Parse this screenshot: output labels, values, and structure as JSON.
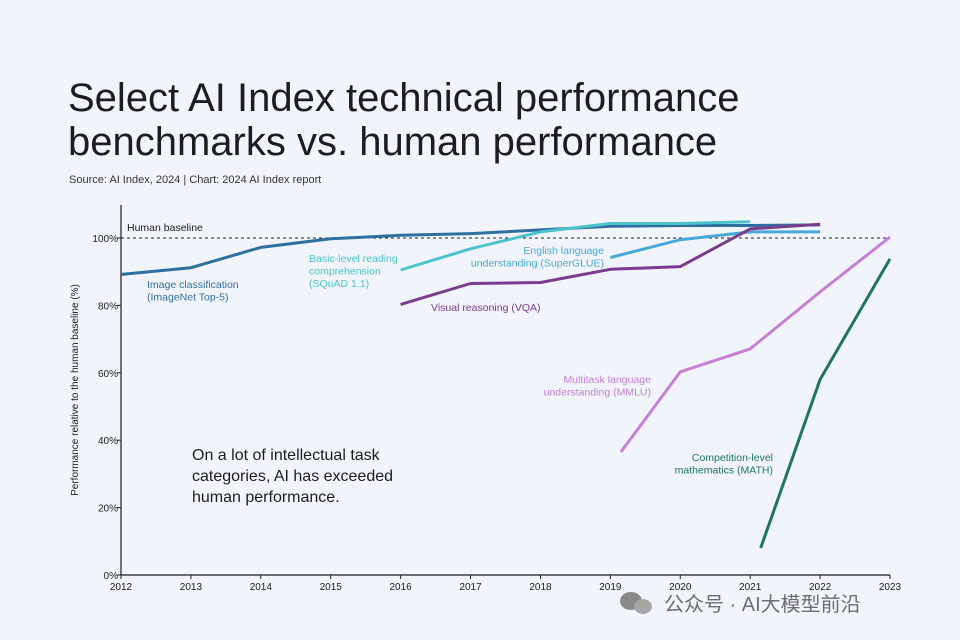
{
  "title": "Select AI Index technical performance benchmarks vs. human performance",
  "source": "Source: AI Index, 2024 | Chart: 2024 AI Index report",
  "annotation": [
    "On a lot of intellectual task",
    "categories, AI has exceeded",
    "human performance."
  ],
  "watermark": "公众号 · AI大模型前沿",
  "chart_data": {
    "type": "line",
    "ylabel": "Performance relative to the human baseline (%)",
    "xlim": [
      2012,
      2023
    ],
    "ylim": [
      0,
      100
    ],
    "x_ticks": [
      2012,
      2013,
      2014,
      2015,
      2016,
      2017,
      2018,
      2019,
      2020,
      2021,
      2022,
      2023
    ],
    "y_ticks": [
      0,
      20,
      40,
      60,
      80,
      100
    ],
    "y_tick_labels": [
      "0%",
      "20%",
      "40%",
      "60%",
      "80%",
      "100%"
    ],
    "reference_line": {
      "label": "Human baseline",
      "value": 100
    },
    "grid": false,
    "series": [
      {
        "name": "Image classification (ImageNet Top-5)",
        "label_lines": [
          "Image classification",
          "(ImageNet Top-5)"
        ],
        "color": "#2f6f9f",
        "points": [
          [
            2012,
            89.2
          ],
          [
            2013,
            91.2
          ],
          [
            2014,
            97.2
          ],
          [
            2015,
            99.8
          ],
          [
            2016,
            100.8
          ],
          [
            2017,
            101.3
          ],
          [
            2018,
            102.4
          ],
          [
            2019,
            103.5
          ],
          [
            2020,
            103.7
          ],
          [
            2021,
            103.7
          ],
          [
            2022,
            103.9
          ]
        ]
      },
      {
        "name": "Basic-level reading comprehension (SQuAD 1.1)",
        "label_lines": [
          "Basic-level reading",
          "comprehension",
          "(SQuAD 1.1)"
        ],
        "color": "#4cc3cc",
        "points": [
          [
            2016,
            90.5
          ],
          [
            2017,
            96.8
          ],
          [
            2018,
            101.8
          ],
          [
            2019,
            104.3
          ],
          [
            2020,
            104.3
          ],
          [
            2021,
            104.8
          ]
        ]
      },
      {
        "name": "English language understanding (SuperGLUE)",
        "label_lines": [
          "English language",
          "understanding (SuperGLUE)"
        ],
        "color": "#49a9d6",
        "points": [
          [
            2019,
            94.2
          ],
          [
            2020,
            99.5
          ],
          [
            2021,
            101.8
          ],
          [
            2022,
            101.8
          ]
        ]
      },
      {
        "name": "Visual reasoning (VQA)",
        "label_lines": [
          "Visual reasoning (VQA)"
        ],
        "color": "#7a3d8e",
        "points": [
          [
            2016,
            80.3
          ],
          [
            2017,
            86.5
          ],
          [
            2018,
            86.8
          ],
          [
            2019,
            90.7
          ],
          [
            2020,
            91.5
          ],
          [
            2021,
            102.7
          ],
          [
            2022,
            104.1
          ]
        ]
      },
      {
        "name": "Multitask language understanding (MMLU)",
        "label_lines": [
          "Multitask language",
          "understanding (MMLU)"
        ],
        "color": "#c67fd3",
        "points": [
          [
            2019.15,
            36.5
          ],
          [
            2020,
            60.3
          ],
          [
            2021,
            67.1
          ],
          [
            2022,
            84.0
          ],
          [
            2023,
            100.3
          ]
        ]
      },
      {
        "name": "Competition-level mathematics (MATH)",
        "label_lines": [
          "Competition-level",
          "mathematics (MATH)"
        ],
        "color": "#1e7466",
        "points": [
          [
            2021.15,
            8.0
          ],
          [
            2022,
            58.0
          ],
          [
            2023,
            93.8
          ]
        ]
      }
    ]
  }
}
